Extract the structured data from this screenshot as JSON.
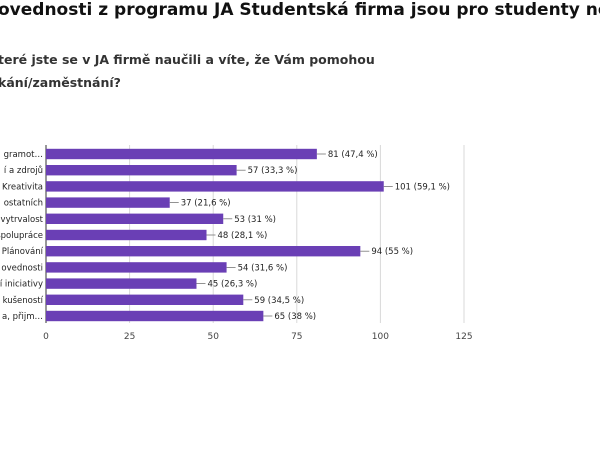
{
  "page": {
    "heading": "ovednosti z programu JA Studentská firma jsou pro studenty nej",
    "question_line1": "teré jste se v JA firmě naučili a víte, že Vám pomohou",
    "question_line2": "kání/zaměstnání?"
  },
  "chart_data": {
    "type": "bar",
    "orientation": "horizontal",
    "title": "",
    "xlabel": "",
    "ylabel": "",
    "bar_color": "#6a3fb5",
    "categories": [
      "gramot…",
      "í a zdrojů",
      "Kreativita",
      "ostatních",
      "vytrvalost",
      "spolupráce",
      "Plánování",
      "ovednosti",
      "í iniciativy",
      "kušeností",
      "a, přijm…"
    ],
    "values": [
      81,
      57,
      101,
      37,
      53,
      48,
      94,
      54,
      45,
      59,
      65
    ],
    "data_labels": [
      "81 (47,4 %)",
      "57 (33,3 %)",
      "101 (59,1 %)",
      "37 (21,6 %)",
      "53 (31 %)",
      "48 (28,1 %)",
      "94 (55 %)",
      "54 (31,6 %)",
      "45 (26,3 %)",
      "59 (34,5 %)",
      "65 (38 %)"
    ],
    "xlim": [
      0,
      125
    ],
    "xticks": [
      "0",
      "25",
      "50",
      "75",
      "100",
      "125"
    ],
    "grid": true,
    "legend": "none"
  }
}
